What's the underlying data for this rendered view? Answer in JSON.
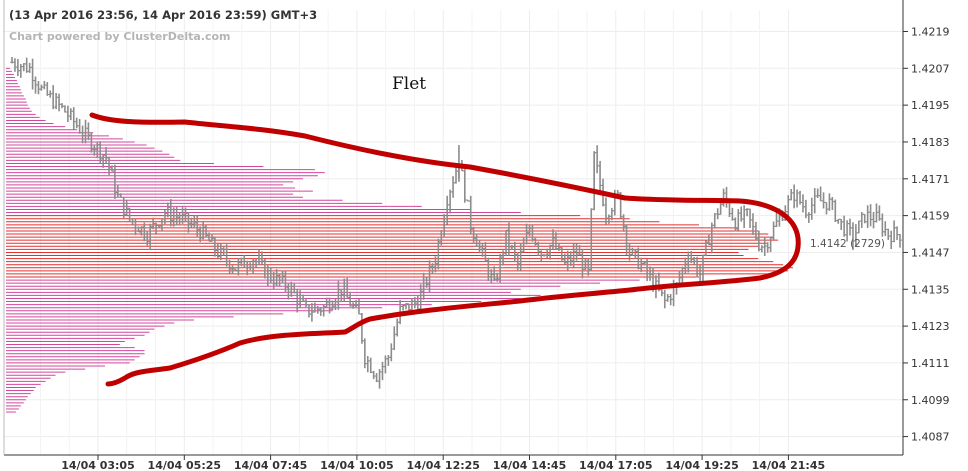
{
  "header": {
    "title": "(13 Apr 2016 23:56, 14 Apr 2016 23:59) GMT+3",
    "subtitle": "Chart powered by ClusterDelta.com"
  },
  "annotation": "Flet",
  "poc_label": "1.4142 (2729)",
  "chart_data": {
    "type": "ohlc",
    "ylim": [
      1.4081,
      1.4226
    ],
    "y_ticks": [
      "1.4219",
      "1.4207",
      "1.4195",
      "1.4183",
      "1.4171",
      "1.4159",
      "1.4147",
      "1.4135",
      "1.4123",
      "1.4111",
      "1.4099",
      "1.4087"
    ],
    "x_ticks": [
      "14/04 03:05",
      "14/04 05:25",
      "14/04 07:45",
      "14/04 10:05",
      "14/04 12:25",
      "14/04 14:45",
      "14/04 17:05",
      "14/04 19:25",
      "14/04 21:45"
    ],
    "grid": true,
    "colors": {
      "candles": "#8c8c8c",
      "profile": "#d2479e",
      "highlight": "#e03030",
      "outline": "#c00000"
    },
    "price_path": [
      [
        0,
        1.4209
      ],
      [
        6,
        1.4207
      ],
      [
        10,
        1.42
      ],
      [
        18,
        1.4193
      ],
      [
        26,
        1.4184
      ],
      [
        32,
        1.4178
      ],
      [
        36,
        1.4165
      ],
      [
        40,
        1.4158
      ],
      [
        46,
        1.4153
      ],
      [
        52,
        1.416
      ],
      [
        58,
        1.4158
      ],
      [
        64,
        1.4154
      ],
      [
        70,
        1.4147
      ],
      [
        76,
        1.4142
      ],
      [
        82,
        1.4145
      ],
      [
        88,
        1.4139
      ],
      [
        94,
        1.4136
      ],
      [
        100,
        1.4128
      ],
      [
        106,
        1.4129
      ],
      [
        112,
        1.4135
      ],
      [
        118,
        1.4126
      ],
      [
        120,
        1.4113
      ],
      [
        124,
        1.4107
      ],
      [
        128,
        1.4113
      ],
      [
        132,
        1.4128
      ],
      [
        138,
        1.4131
      ],
      [
        144,
        1.4145
      ],
      [
        148,
        1.4165
      ],
      [
        152,
        1.4177
      ],
      [
        156,
        1.4156
      ],
      [
        160,
        1.4146
      ],
      [
        164,
        1.4136
      ],
      [
        168,
        1.4152
      ],
      [
        172,
        1.4143
      ],
      [
        176,
        1.4155
      ],
      [
        180,
        1.4147
      ],
      [
        184,
        1.415
      ],
      [
        188,
        1.4143
      ],
      [
        192,
        1.4147
      ],
      [
        196,
        1.414
      ],
      [
        198,
        1.4178
      ],
      [
        202,
        1.416
      ],
      [
        206,
        1.4165
      ],
      [
        210,
        1.4147
      ],
      [
        214,
        1.4143
      ],
      [
        218,
        1.4137
      ],
      [
        222,
        1.4131
      ],
      [
        226,
        1.4136
      ],
      [
        230,
        1.4147
      ],
      [
        234,
        1.414
      ],
      [
        238,
        1.4156
      ],
      [
        242,
        1.4165
      ],
      [
        246,
        1.4157
      ],
      [
        250,
        1.4159
      ],
      [
        254,
        1.415
      ],
      [
        256,
        1.4149
      ],
      [
        258,
        1.4153
      ],
      [
        262,
        1.416
      ],
      [
        266,
        1.4166
      ],
      [
        270,
        1.4161
      ],
      [
        274,
        1.4164
      ],
      [
        278,
        1.4163
      ],
      [
        282,
        1.4156
      ],
      [
        286,
        1.4152
      ],
      [
        290,
        1.4159
      ],
      [
        294,
        1.4158
      ],
      [
        298,
        1.4153
      ],
      [
        302,
        1.4153
      ]
    ],
    "volume_profile": [
      [
        1.4207,
        4
      ],
      [
        1.4206,
        6
      ],
      [
        1.4205,
        8
      ],
      [
        1.4204,
        9
      ],
      [
        1.4203,
        11
      ],
      [
        1.4202,
        12
      ],
      [
        1.4201,
        14
      ],
      [
        1.42,
        15
      ],
      [
        1.4199,
        16
      ],
      [
        1.4198,
        18
      ],
      [
        1.4197,
        20
      ],
      [
        1.4196,
        21
      ],
      [
        1.4195,
        22
      ],
      [
        1.4194,
        24
      ],
      [
        1.4193,
        26
      ],
      [
        1.4192,
        30
      ],
      [
        1.4191,
        34
      ],
      [
        1.419,
        40
      ],
      [
        1.4189,
        48
      ],
      [
        1.4188,
        60
      ],
      [
        1.4187,
        72
      ],
      [
        1.4186,
        88
      ],
      [
        1.4185,
        104
      ],
      [
        1.4184,
        118
      ],
      [
        1.4183,
        130
      ],
      [
        1.4182,
        142
      ],
      [
        1.4181,
        150
      ],
      [
        1.418,
        158
      ],
      [
        1.4179,
        165
      ],
      [
        1.4178,
        170
      ],
      [
        1.4177,
        176
      ],
      [
        1.4176,
        210
      ],
      [
        1.4175,
        260
      ],
      [
        1.4174,
        312
      ],
      [
        1.4173,
        322
      ],
      [
        1.4172,
        315
      ],
      [
        1.4171,
        300
      ],
      [
        1.417,
        290
      ],
      [
        1.4169,
        280
      ],
      [
        1.4168,
        292
      ],
      [
        1.4167,
        310
      ],
      [
        1.4166,
        290
      ],
      [
        1.4165,
        300
      ],
      [
        1.4164,
        340
      ],
      [
        1.4163,
        380
      ],
      [
        1.4162,
        420
      ],
      [
        1.4161,
        470
      ],
      [
        1.416,
        520
      ],
      [
        1.4159,
        580
      ],
      [
        1.4158,
        630
      ],
      [
        1.4157,
        660
      ],
      [
        1.4156,
        700
      ],
      [
        1.4155,
        740
      ],
      [
        1.4154,
        760
      ],
      [
        1.4153,
        770
      ],
      [
        1.4152,
        775
      ],
      [
        1.4151,
        780
      ],
      [
        1.415,
        770
      ],
      [
        1.4149,
        760
      ],
      [
        1.4148,
        750
      ],
      [
        1.4147,
        740
      ],
      [
        1.4146,
        745
      ],
      [
        1.4145,
        760
      ],
      [
        1.4144,
        775
      ],
      [
        1.4143,
        785
      ],
      [
        1.4142,
        795
      ],
      [
        1.4141,
        790
      ],
      [
        1.414,
        780
      ],
      [
        1.4139,
        700
      ],
      [
        1.4138,
        640
      ],
      [
        1.4137,
        600
      ],
      [
        1.4136,
        560
      ],
      [
        1.4135,
        520
      ],
      [
        1.4134,
        510
      ],
      [
        1.4133,
        540
      ],
      [
        1.4132,
        520
      ],
      [
        1.4131,
        480
      ],
      [
        1.413,
        430
      ],
      [
        1.4129,
        380
      ],
      [
        1.4128,
        330
      ],
      [
        1.4127,
        280
      ],
      [
        1.4126,
        230
      ],
      [
        1.4125,
        190
      ],
      [
        1.4124,
        170
      ],
      [
        1.4123,
        160
      ],
      [
        1.4122,
        150
      ],
      [
        1.4121,
        145
      ],
      [
        1.412,
        140
      ],
      [
        1.4119,
        130
      ],
      [
        1.4118,
        120
      ],
      [
        1.4117,
        115
      ],
      [
        1.4116,
        130
      ],
      [
        1.4115,
        140
      ],
      [
        1.4114,
        140
      ],
      [
        1.4113,
        135
      ],
      [
        1.4112,
        130
      ],
      [
        1.4111,
        125
      ],
      [
        1.411,
        100
      ],
      [
        1.4109,
        80
      ],
      [
        1.4108,
        60
      ],
      [
        1.4107,
        50
      ],
      [
        1.4106,
        45
      ],
      [
        1.4105,
        40
      ],
      [
        1.4104,
        35
      ],
      [
        1.4103,
        30
      ],
      [
        1.4102,
        28
      ],
      [
        1.4101,
        25
      ],
      [
        1.41,
        22
      ],
      [
        1.4099,
        20
      ],
      [
        1.4098,
        18
      ],
      [
        1.4097,
        15
      ],
      [
        1.4096,
        13
      ],
      [
        1.4095,
        10
      ]
    ],
    "poc": {
      "price": 1.4142,
      "volume": 2729
    }
  }
}
